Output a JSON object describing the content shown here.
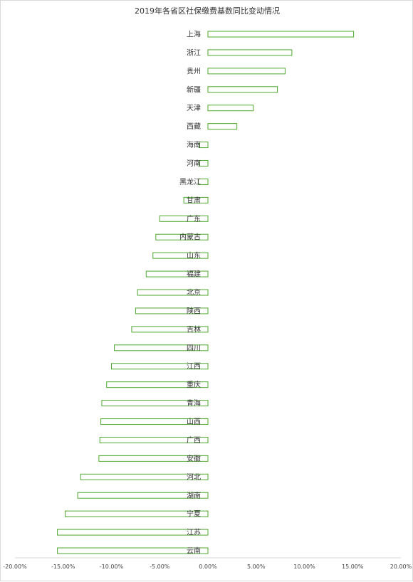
{
  "chart_data": {
    "type": "bar",
    "orientation": "horizontal",
    "title": "2019年各省区社保缴费基数同比变动情况",
    "xlabel": "",
    "ylabel": "",
    "xlim": [
      -0.2,
      0.2
    ],
    "x_tick_values": [
      -0.2,
      -0.15,
      -0.1,
      -0.05,
      0.0,
      0.05,
      0.1,
      0.15,
      0.2
    ],
    "x_tick_labels": [
      "-20.00%",
      "-15.00%",
      "-10.00%",
      "-5.00%",
      "0.00%",
      "5.00%",
      "10.00%",
      "15.00%",
      "20.00%"
    ],
    "categories": [
      "上海",
      "浙江",
      "贵州",
      "新疆",
      "天津",
      "西藏",
      "海南",
      "河南",
      "黑龙江",
      "甘肃",
      "广东",
      "内蒙古",
      "山东",
      "福建",
      "北京",
      "陕西",
      "吉林",
      "四川",
      "江西",
      "重庆",
      "青海",
      "山西",
      "广西",
      "安徽",
      "河北",
      "湖南",
      "宁夏",
      "江苏",
      "云南"
    ],
    "values": [
      0.151,
      0.087,
      0.08,
      0.072,
      0.047,
      0.03,
      -0.009,
      -0.009,
      -0.01,
      -0.025,
      -0.05,
      -0.054,
      -0.057,
      -0.064,
      -0.073,
      -0.075,
      -0.079,
      -0.097,
      -0.1,
      -0.105,
      -0.11,
      -0.111,
      -0.112,
      -0.113,
      -0.132,
      -0.135,
      -0.148,
      -0.156,
      -0.156
    ],
    "grid": false,
    "legend": "none",
    "colors": {
      "bar_stroke": "#4ea72e",
      "bar_fill": "#ffffff",
      "axis": "#d9d9d9",
      "text": "#333333"
    }
  }
}
